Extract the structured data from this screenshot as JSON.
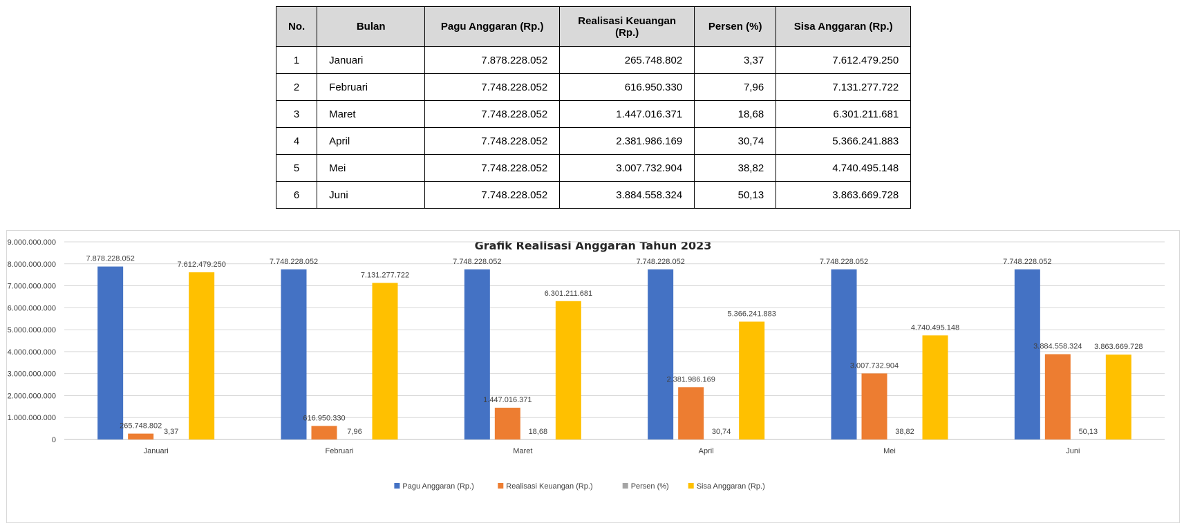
{
  "table": {
    "headers": [
      "No.",
      "Bulan",
      "Pagu Anggaran (Rp.)",
      "Realisasi Keuangan (Rp.)",
      "Persen (%)",
      "Sisa Anggaran (Rp.)"
    ],
    "rows": [
      [
        "1",
        "Januari",
        "7.878.228.052",
        "265.748.802",
        "3,37",
        "7.612.479.250"
      ],
      [
        "2",
        "Februari",
        "7.748.228.052",
        "616.950.330",
        "7,96",
        "7.131.277.722"
      ],
      [
        "3",
        "Maret",
        "7.748.228.052",
        "1.447.016.371",
        "18,68",
        "6.301.211.681"
      ],
      [
        "4",
        "April",
        "7.748.228.052",
        "2.381.986.169",
        "30,74",
        "5.366.241.883"
      ],
      [
        "5",
        "Mei",
        "7.748.228.052",
        "3.007.732.904",
        "38,82",
        "4.740.495.148"
      ],
      [
        "6",
        "Juni",
        "7.748.228.052",
        "3.884.558.324",
        "50,13",
        "3.863.669.728"
      ]
    ]
  },
  "chart_data": {
    "type": "bar",
    "title": "Grafik Realisasi Anggaran Tahun 2023",
    "categories": [
      "Januari",
      "Februari",
      "Maret",
      "April",
      "Mei",
      "Juni"
    ],
    "ylim": [
      0,
      9000000000
    ],
    "yticks": [
      {
        "value": 0,
        "label": "0"
      },
      {
        "value": 1000000000,
        "label": "1.000.000.000"
      },
      {
        "value": 2000000000,
        "label": "2.000.000.000"
      },
      {
        "value": 3000000000,
        "label": "3.000.000.000"
      },
      {
        "value": 4000000000,
        "label": "4.000.000.000"
      },
      {
        "value": 5000000000,
        "label": "5.000.000.000"
      },
      {
        "value": 6000000000,
        "label": "6.000.000.000"
      },
      {
        "value": 7000000000,
        "label": "7.000.000.000"
      },
      {
        "value": 8000000000,
        "label": "8.000.000.000"
      },
      {
        "value": 9000000000,
        "label": "9.000.000.000"
      }
    ],
    "grid": true,
    "legend": "bottom",
    "series": [
      {
        "name": "Pagu Anggaran (Rp.)",
        "color": "#4472c4",
        "values": [
          7878228052,
          7748228052,
          7748228052,
          7748228052,
          7748228052,
          7748228052
        ],
        "labels": [
          "7.878.228.052",
          "7.748.228.052",
          "7.748.228.052",
          "7.748.228.052",
          "7.748.228.052",
          "7.748.228.052"
        ]
      },
      {
        "name": "Realisasi Keuangan (Rp.)",
        "color": "#ed7d31",
        "values": [
          265748802,
          616950330,
          1447016371,
          2381986169,
          3007732904,
          3884558324
        ],
        "labels": [
          "265.748.802",
          "616.950.330",
          "1.447.016.371",
          "2.381.986.169",
          "3.007.732.904",
          "3.884.558.324"
        ]
      },
      {
        "name": "Persen (%)",
        "color": "#a5a5a5",
        "values": [
          3.37,
          7.96,
          18.68,
          30.74,
          38.82,
          50.13
        ],
        "labels": [
          "3,37",
          "7,96",
          "18,68",
          "30,74",
          "38,82",
          "50,13"
        ]
      },
      {
        "name": "Sisa Anggaran (Rp.)",
        "color": "#ffc000",
        "values": [
          7612479250,
          7131277722,
          6301211681,
          5366241883,
          4740495148,
          3863669728
        ],
        "labels": [
          "7.612.479.250",
          "7.131.277.722",
          "6.301.211.681",
          "5.366.241.883",
          "4.740.495.148",
          "3.863.669.728"
        ]
      }
    ]
  }
}
